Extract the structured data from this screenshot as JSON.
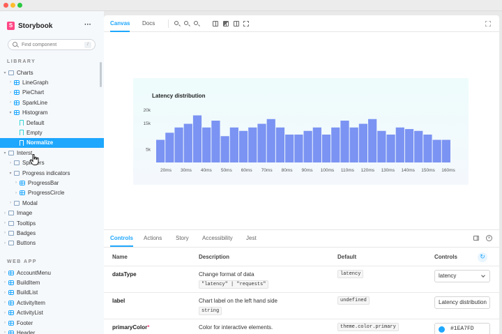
{
  "app": {
    "name": "Storybook",
    "logo_letter": "S",
    "more_icon": "ellipsis-icon",
    "search_placeholder": "Find component",
    "search_shortcut": "/"
  },
  "sidebar": {
    "library_title": "LIBRARY",
    "webapp_title": "WEB APP",
    "library_items": [
      {
        "label": "Charts",
        "type": "folder",
        "chev": "▾",
        "indent": 0
      },
      {
        "label": "LineGraph",
        "type": "component",
        "chev": "›",
        "indent": 1
      },
      {
        "label": "PieChart",
        "type": "component",
        "chev": "›",
        "indent": 1
      },
      {
        "label": "SparkLine",
        "type": "component",
        "chev": "›",
        "indent": 1
      },
      {
        "label": "Histogram",
        "type": "component",
        "chev": "▾",
        "indent": 1
      },
      {
        "label": "Default",
        "type": "story",
        "chev": "",
        "indent": 2
      },
      {
        "label": "Empty",
        "type": "story",
        "chev": "",
        "indent": 2
      },
      {
        "label": "Normalize",
        "type": "story",
        "chev": "",
        "indent": 2,
        "selected": true
      },
      {
        "label": "Interst",
        "type": "folder",
        "chev": "▾",
        "indent": 0
      },
      {
        "label": "Spinners",
        "type": "folder",
        "chev": "›",
        "indent": 1
      },
      {
        "label": "Progress indicators",
        "type": "folder",
        "chev": "▾",
        "indent": 1
      },
      {
        "label": "ProgressBar",
        "type": "component",
        "chev": "›",
        "indent": 2
      },
      {
        "label": "ProgressCircle",
        "type": "component",
        "chev": "›",
        "indent": 2
      },
      {
        "label": "Modal",
        "type": "folder",
        "chev": "›",
        "indent": 1
      },
      {
        "label": "Image",
        "type": "folder",
        "chev": "›",
        "indent": 0
      },
      {
        "label": "Tooltips",
        "type": "folder",
        "chev": "›",
        "indent": 0
      },
      {
        "label": "Badges",
        "type": "folder",
        "chev": "›",
        "indent": 0
      },
      {
        "label": "Buttons",
        "type": "folder",
        "chev": "›",
        "indent": 0
      }
    ],
    "webapp_items": [
      {
        "label": "AccountMenu",
        "type": "component",
        "chev": "›",
        "indent": 0
      },
      {
        "label": "BuildItem",
        "type": "component",
        "chev": "›",
        "indent": 0
      },
      {
        "label": "BuildList",
        "type": "component",
        "chev": "›",
        "indent": 0
      },
      {
        "label": "ActivityItem",
        "type": "component",
        "chev": "›",
        "indent": 0
      },
      {
        "label": "ActivityList",
        "type": "component",
        "chev": "›",
        "indent": 0
      },
      {
        "label": "Footer",
        "type": "component",
        "chev": "›",
        "indent": 0
      },
      {
        "label": "Header",
        "type": "component",
        "chev": "›",
        "indent": 0
      }
    ]
  },
  "toolbar": {
    "tabs": [
      {
        "label": "Canvas",
        "active": true
      },
      {
        "label": "Docs",
        "active": false
      }
    ],
    "tools": [
      "zoom-in-icon",
      "zoom-out-icon",
      "zoom-reset-icon",
      "grid-icon",
      "background-icon",
      "viewport-icon",
      "outline-icon",
      "fullscreen-icon"
    ]
  },
  "chart_data": {
    "type": "bar",
    "title": "Latency distribution",
    "color": "#7b93f2",
    "yticks": [
      "20k",
      "15k",
      "5k"
    ],
    "xticks": [
      "20ms",
      "30ms",
      "40ms",
      "50ms",
      "60ms",
      "70ms",
      "80ms",
      "90ms",
      "100ms",
      "110ms",
      "120ms",
      "130ms",
      "140ms",
      "150ms",
      "160ms"
    ],
    "values": [
      8600,
      11300,
      13300,
      14700,
      17900,
      13300,
      15900,
      10000,
      13300,
      12000,
      13300,
      14700,
      16500,
      13300,
      10600,
      10600,
      12000,
      13300,
      10600,
      13300,
      15900,
      13300,
      14700,
      16500,
      12000,
      10600,
      13300,
      12700,
      12000,
      10600,
      8600,
      8600
    ],
    "ylim": [
      0,
      22000
    ]
  },
  "panel": {
    "tabs": [
      {
        "label": "Controls",
        "active": true
      },
      {
        "label": "Actions",
        "active": false
      },
      {
        "label": "Story",
        "active": false
      },
      {
        "label": "Accessibility",
        "active": false
      },
      {
        "label": "Jest",
        "active": false
      }
    ],
    "headers": {
      "name": "Name",
      "description": "Description",
      "default": "Default",
      "controls": "Controls"
    },
    "rows": [
      {
        "name": "dataType",
        "required": "",
        "description": "Change format of data",
        "desc_code": "\"latency\" | \"requests\"",
        "default": "latency",
        "control_type": "select",
        "control_value": "latency"
      },
      {
        "name": "label",
        "required": "",
        "description": "Chart label on the left hand side",
        "desc_code": "string",
        "default": "undefined",
        "control_type": "text",
        "control_value": "Latency distribution"
      },
      {
        "name": "primaryColor",
        "required": "*",
        "description": "Color for interactive elements.",
        "desc_code": "",
        "default": "theme.color.primary",
        "control_type": "color",
        "control_value": "#1EA7FD"
      }
    ]
  }
}
